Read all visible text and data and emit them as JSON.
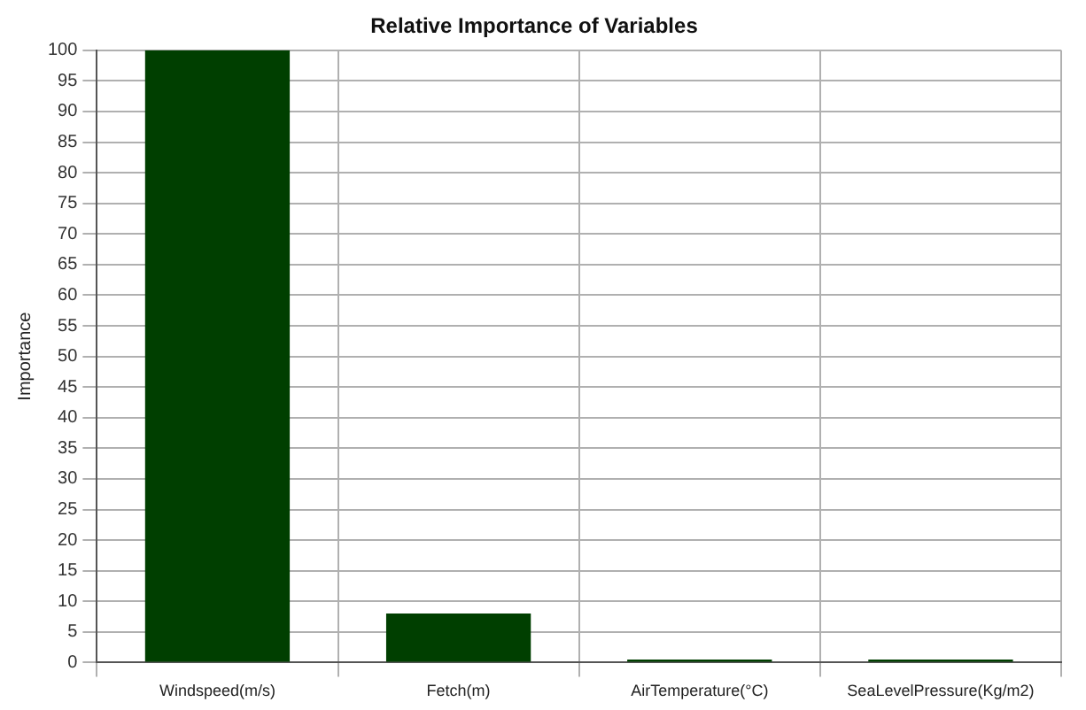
{
  "chart_data": {
    "type": "bar",
    "title": "Relative Importance of Variables",
    "ylabel": "Importance",
    "categories": [
      "Windspeed(m/s)",
      "Fetch(m)",
      "AirTemperature(°C)",
      "SeaLevelPressure(Kg/m2)"
    ],
    "values": [
      100,
      8,
      0.5,
      0.5
    ],
    "color": "#003f00",
    "ylim": [
      0,
      100
    ],
    "yticks": [
      0,
      5,
      10,
      15,
      20,
      25,
      30,
      35,
      40,
      45,
      50,
      55,
      60,
      65,
      70,
      75,
      80,
      85,
      90,
      95,
      100
    ],
    "grid": true,
    "legend": false
  }
}
